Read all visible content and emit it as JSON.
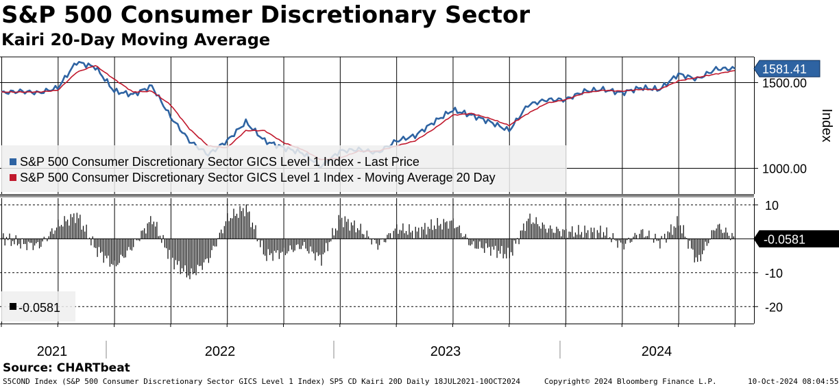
{
  "title": "S&P 500 Consumer Discretionary Sector",
  "subtitle": "Kairi 20-Day Moving Average",
  "source": "Source: CHARTbeat",
  "footer": {
    "left": "S5COND Index (S&P 500 Consumer Discretionary Sector GICS Level 1 Index) SP5 CD Kairi 20D  Daily 18JUL2021-10OCT2024",
    "center": "Copyright© 2024 Bloomberg Finance L.P.",
    "right": "10-Oct-2024 08:04:55"
  },
  "colors": {
    "price": "#2e63a2",
    "moving_average": "#c0182c",
    "kairi": "#000000",
    "grid": "#000000",
    "background": "#ffffff",
    "legend_bg": "#eeeeee"
  },
  "chart_data": [
    {
      "type": "line",
      "y_axis_label": "Index",
      "ylim": [
        850,
        1650
      ],
      "yticks": [
        1000,
        1500
      ],
      "ytick_labels": [
        "1000.00",
        "1500.00"
      ],
      "x_labels": [
        "2021",
        "2022",
        "2023",
        "2024"
      ],
      "grid": true,
      "legend_position": "bottom-left",
      "last_value_label": "1581.41",
      "x": [
        "2021-07",
        "2021-08",
        "2021-09",
        "2021-10",
        "2021-11",
        "2021-12",
        "2022-01",
        "2022-02",
        "2022-03",
        "2022-04",
        "2022-05",
        "2022-06",
        "2022-07",
        "2022-08",
        "2022-09",
        "2022-10",
        "2022-11",
        "2022-12",
        "2023-01",
        "2023-02",
        "2023-03",
        "2023-04",
        "2023-05",
        "2023-06",
        "2023-07",
        "2023-08",
        "2023-09",
        "2023-10",
        "2023-11",
        "2023-12",
        "2024-01",
        "2024-02",
        "2024-03",
        "2024-04",
        "2024-05",
        "2024-06",
        "2024-07",
        "2024-08",
        "2024-09",
        "2024-10"
      ],
      "series": [
        {
          "name": "S&P 500 Consumer Discretionary Sector GICS Level 1 Index - Last Price",
          "values": [
            1440,
            1450,
            1440,
            1470,
            1620,
            1590,
            1450,
            1430,
            1480,
            1300,
            1160,
            1080,
            1160,
            1270,
            1160,
            1120,
            1090,
            1010,
            1100,
            1110,
            1090,
            1160,
            1190,
            1270,
            1340,
            1310,
            1270,
            1220,
            1370,
            1400,
            1400,
            1450,
            1460,
            1440,
            1470,
            1460,
            1550,
            1520,
            1580,
            1581.41
          ]
        },
        {
          "name": "S&P 500 Consumer Discretionary Sector GICS Level 1 Index - Moving Average 20 Day",
          "values": [
            1445,
            1445,
            1445,
            1455,
            1560,
            1600,
            1520,
            1445,
            1450,
            1370,
            1230,
            1130,
            1120,
            1220,
            1220,
            1150,
            1110,
            1050,
            1060,
            1100,
            1100,
            1130,
            1160,
            1230,
            1310,
            1320,
            1290,
            1250,
            1320,
            1380,
            1400,
            1440,
            1455,
            1450,
            1460,
            1460,
            1510,
            1530,
            1550,
            1570
          ]
        }
      ]
    },
    {
      "type": "bar",
      "ylim": [
        -25,
        12
      ],
      "yticks": [
        10,
        -10,
        -20
      ],
      "ytick_labels": [
        "10",
        "-10",
        "-20"
      ],
      "legend_position": "bottom-left",
      "legend_label": "-0.0581",
      "last_value_label": "-0.0581",
      "x": [
        "2021-07",
        "2021-08",
        "2021-09",
        "2021-10",
        "2021-11",
        "2021-12",
        "2022-01",
        "2022-02",
        "2022-03",
        "2022-04",
        "2022-05",
        "2022-06",
        "2022-07",
        "2022-08",
        "2022-09",
        "2022-10",
        "2022-11",
        "2022-12",
        "2023-01",
        "2023-02",
        "2023-03",
        "2023-04",
        "2023-05",
        "2023-06",
        "2023-07",
        "2023-08",
        "2023-09",
        "2023-10",
        "2023-11",
        "2023-12",
        "2024-01",
        "2024-02",
        "2024-03",
        "2024-04",
        "2024-05",
        "2024-06",
        "2024-07",
        "2024-08",
        "2024-09",
        "2024-10"
      ],
      "series": [
        {
          "name": "",
          "values": [
            0.5,
            -1.5,
            -2,
            4,
            7,
            -3,
            -8,
            -2,
            6,
            -6,
            -11,
            -6,
            6,
            9,
            -5,
            -4,
            -2,
            -6,
            6,
            3,
            -2,
            3,
            2,
            4,
            5,
            -2,
            -3,
            -5,
            6,
            3,
            2,
            2,
            2,
            -2,
            2,
            -1,
            5,
            -7,
            4,
            -0.0581
          ]
        }
      ]
    }
  ]
}
